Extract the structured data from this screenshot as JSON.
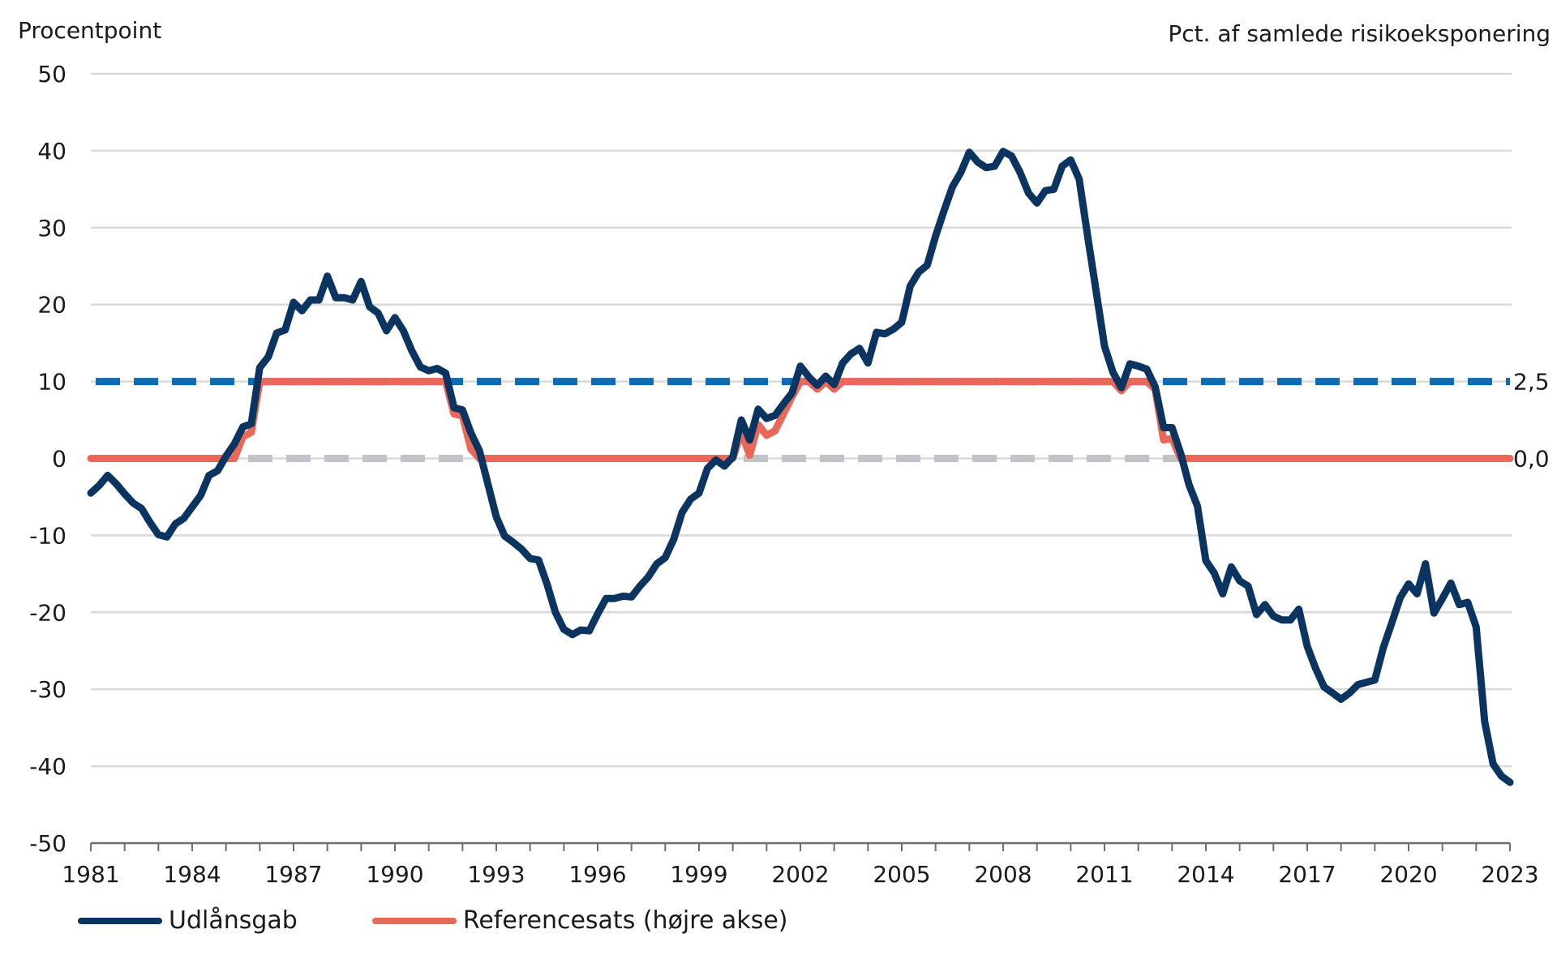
{
  "chart_data": {
    "type": "line",
    "left_axis_title": "Procentpoint",
    "right_axis_title": "Pct. af samlede risikoeksponering",
    "ylim": [
      -50,
      50
    ],
    "y_ticks": [
      50,
      40,
      30,
      20,
      10,
      0,
      -10,
      -20,
      -30,
      -40,
      -50
    ],
    "y_tick_labels": [
      "50",
      "40",
      "30",
      "20",
      "10",
      "0",
      "-10",
      "-20",
      "-30",
      "-40",
      "-50"
    ],
    "y2lim": [
      -12.5,
      12.5
    ],
    "y2_tick_labels": [
      {
        "value": 2.5,
        "label": "2,5"
      },
      {
        "value": 0.0,
        "label": "0,0"
      }
    ],
    "xlim": [
      1981,
      2023
    ],
    "x_tick_labels": [
      "1981",
      "1984",
      "1987",
      "1990",
      "1993",
      "1996",
      "1999",
      "2002",
      "2005",
      "2008",
      "2011",
      "2014",
      "2017",
      "2020",
      "2023"
    ],
    "grid": true,
    "legend_position": "bottom-left",
    "reference_lines": [
      {
        "y2": 2.5,
        "color": "#0e6ab3",
        "style": "dashed"
      },
      {
        "y2": 0.0,
        "color": "#c0c4c8",
        "style": "dashed"
      }
    ],
    "series": [
      {
        "name": "Udlånsgab",
        "axis": "left",
        "color": "#0b3560",
        "points": [
          [
            1981.0,
            -4.5
          ],
          [
            1981.25,
            -3.5
          ],
          [
            1981.5,
            -2.2
          ],
          [
            1981.75,
            -3.3
          ],
          [
            1982.0,
            -4.6
          ],
          [
            1982.25,
            -5.8
          ],
          [
            1982.5,
            -6.5
          ],
          [
            1982.75,
            -8.3
          ],
          [
            1983.0,
            -9.9
          ],
          [
            1983.25,
            -10.2
          ],
          [
            1983.5,
            -8.5
          ],
          [
            1983.75,
            -7.8
          ],
          [
            1984.0,
            -6.3
          ],
          [
            1984.25,
            -4.8
          ],
          [
            1984.5,
            -2.2
          ],
          [
            1984.75,
            -1.6
          ],
          [
            1985.0,
            0.3
          ],
          [
            1985.25,
            1.9
          ],
          [
            1985.5,
            4.1
          ],
          [
            1985.75,
            4.5
          ],
          [
            1986.0,
            11.8
          ],
          [
            1986.25,
            13.2
          ],
          [
            1986.5,
            16.3
          ],
          [
            1986.75,
            16.7
          ],
          [
            1987.0,
            20.3
          ],
          [
            1987.25,
            19.2
          ],
          [
            1987.5,
            20.6
          ],
          [
            1987.75,
            20.6
          ],
          [
            1988.0,
            23.7
          ],
          [
            1988.25,
            20.9
          ],
          [
            1988.5,
            20.9
          ],
          [
            1988.75,
            20.6
          ],
          [
            1989.0,
            23.0
          ],
          [
            1989.25,
            19.7
          ],
          [
            1989.5,
            18.9
          ],
          [
            1989.75,
            16.6
          ],
          [
            1990.0,
            18.3
          ],
          [
            1990.25,
            16.6
          ],
          [
            1990.5,
            14.0
          ],
          [
            1990.75,
            11.9
          ],
          [
            1991.0,
            11.4
          ],
          [
            1991.25,
            11.7
          ],
          [
            1991.5,
            11.1
          ],
          [
            1991.75,
            6.6
          ],
          [
            1992.0,
            6.3
          ],
          [
            1992.25,
            3.3
          ],
          [
            1992.5,
            1.0
          ],
          [
            1992.75,
            -3.3
          ],
          [
            1993.0,
            -7.6
          ],
          [
            1993.25,
            -10.1
          ],
          [
            1993.5,
            -10.9
          ],
          [
            1993.75,
            -11.8
          ],
          [
            1994.0,
            -13.0
          ],
          [
            1994.25,
            -13.2
          ],
          [
            1994.5,
            -16.3
          ],
          [
            1994.75,
            -20.0
          ],
          [
            1995.0,
            -22.2
          ],
          [
            1995.25,
            -22.9
          ],
          [
            1995.5,
            -22.3
          ],
          [
            1995.75,
            -22.4
          ],
          [
            1996.0,
            -20.2
          ],
          [
            1996.25,
            -18.2
          ],
          [
            1996.5,
            -18.2
          ],
          [
            1996.75,
            -17.9
          ],
          [
            1997.0,
            -18.0
          ],
          [
            1997.25,
            -16.6
          ],
          [
            1997.5,
            -15.4
          ],
          [
            1997.75,
            -13.7
          ],
          [
            1998.0,
            -12.9
          ],
          [
            1998.25,
            -10.5
          ],
          [
            1998.5,
            -7.0
          ],
          [
            1998.75,
            -5.3
          ],
          [
            1999.0,
            -4.5
          ],
          [
            1999.25,
            -1.3
          ],
          [
            1999.5,
            -0.2
          ],
          [
            1999.75,
            -1.0
          ],
          [
            2000.0,
            0.2
          ],
          [
            2000.25,
            5.0
          ],
          [
            2000.5,
            2.4
          ],
          [
            2000.75,
            6.4
          ],
          [
            2001.0,
            5.2
          ],
          [
            2001.25,
            5.6
          ],
          [
            2001.5,
            7.1
          ],
          [
            2001.75,
            8.5
          ],
          [
            2002.0,
            12.0
          ],
          [
            2002.25,
            10.6
          ],
          [
            2002.5,
            9.5
          ],
          [
            2002.75,
            10.7
          ],
          [
            2003.0,
            9.6
          ],
          [
            2003.25,
            12.4
          ],
          [
            2003.5,
            13.6
          ],
          [
            2003.75,
            14.3
          ],
          [
            2004.0,
            12.4
          ],
          [
            2004.25,
            16.4
          ],
          [
            2004.5,
            16.2
          ],
          [
            2004.75,
            16.8
          ],
          [
            2005.0,
            17.7
          ],
          [
            2005.25,
            22.4
          ],
          [
            2005.5,
            24.2
          ],
          [
            2005.75,
            25.1
          ],
          [
            2006.0,
            28.9
          ],
          [
            2006.25,
            32.2
          ],
          [
            2006.5,
            35.3
          ],
          [
            2006.75,
            37.2
          ],
          [
            2007.0,
            39.8
          ],
          [
            2007.25,
            38.5
          ],
          [
            2007.5,
            37.8
          ],
          [
            2007.75,
            38.0
          ],
          [
            2008.0,
            39.9
          ],
          [
            2008.25,
            39.3
          ],
          [
            2008.5,
            37.2
          ],
          [
            2008.75,
            34.5
          ],
          [
            2009.0,
            33.2
          ],
          [
            2009.25,
            34.8
          ],
          [
            2009.5,
            35.0
          ],
          [
            2009.75,
            38.0
          ],
          [
            2010.0,
            38.8
          ],
          [
            2010.25,
            36.3
          ],
          [
            2010.5,
            28.9
          ],
          [
            2010.75,
            21.8
          ],
          [
            2011.0,
            14.6
          ],
          [
            2011.25,
            11.2
          ],
          [
            2011.5,
            9.2
          ],
          [
            2011.75,
            12.3
          ],
          [
            2012.0,
            12.0
          ],
          [
            2012.25,
            11.6
          ],
          [
            2012.5,
            9.3
          ],
          [
            2012.75,
            4.0
          ],
          [
            2013.0,
            4.0
          ],
          [
            2013.25,
            0.7
          ],
          [
            2013.5,
            -3.4
          ],
          [
            2013.75,
            -6.2
          ],
          [
            2014.0,
            -13.3
          ],
          [
            2014.25,
            -14.9
          ],
          [
            2014.5,
            -17.6
          ],
          [
            2014.75,
            -14.1
          ],
          [
            2015.0,
            -15.9
          ],
          [
            2015.25,
            -16.6
          ],
          [
            2015.5,
            -20.3
          ],
          [
            2015.75,
            -19.0
          ],
          [
            2016.0,
            -20.5
          ],
          [
            2016.25,
            -21.0
          ],
          [
            2016.5,
            -21.0
          ],
          [
            2016.75,
            -19.6
          ],
          [
            2017.0,
            -24.4
          ],
          [
            2017.25,
            -27.3
          ],
          [
            2017.5,
            -29.7
          ],
          [
            2017.75,
            -30.5
          ],
          [
            2018.0,
            -31.3
          ],
          [
            2018.25,
            -30.5
          ],
          [
            2018.5,
            -29.4
          ],
          [
            2018.75,
            -29.1
          ],
          [
            2019.0,
            -28.8
          ],
          [
            2019.25,
            -24.6
          ],
          [
            2019.5,
            -21.4
          ],
          [
            2019.75,
            -18.1
          ],
          [
            2020.0,
            -16.3
          ],
          [
            2020.25,
            -17.6
          ],
          [
            2020.5,
            -13.7
          ],
          [
            2020.75,
            -20.1
          ],
          [
            2021.0,
            -18.2
          ],
          [
            2021.25,
            -16.2
          ],
          [
            2021.5,
            -19.0
          ],
          [
            2021.75,
            -18.7
          ],
          [
            2022.0,
            -21.9
          ],
          [
            2022.25,
            -34.2
          ],
          [
            2022.5,
            -39.7
          ],
          [
            2022.75,
            -41.3
          ],
          [
            2023.0,
            -42.1
          ]
        ]
      },
      {
        "name": "Referencesats (højre akse)",
        "axis": "right",
        "color": "#e8695a",
        "points": [
          [
            1981.0,
            0.0
          ],
          [
            1984.0,
            0.0
          ],
          [
            1985.0,
            0.0
          ],
          [
            1985.25,
            0.0
          ],
          [
            1985.5,
            0.7
          ],
          [
            1985.75,
            0.85
          ],
          [
            1986.0,
            2.5
          ],
          [
            1991.5,
            2.5
          ],
          [
            1991.75,
            1.45
          ],
          [
            1992.0,
            1.38
          ],
          [
            1992.25,
            0.3
          ],
          [
            1992.5,
            0.0
          ],
          [
            2000.0,
            0.0
          ],
          [
            2000.25,
            0.85
          ],
          [
            2000.5,
            0.1
          ],
          [
            2000.75,
            1.1
          ],
          [
            2001.0,
            0.75
          ],
          [
            2001.25,
            0.9
          ],
          [
            2001.5,
            1.45
          ],
          [
            2001.75,
            2.0
          ],
          [
            2002.0,
            2.5
          ],
          [
            2002.25,
            2.5
          ],
          [
            2002.5,
            2.25
          ],
          [
            2002.75,
            2.5
          ],
          [
            2003.0,
            2.25
          ],
          [
            2003.25,
            2.5
          ],
          [
            2011.25,
            2.5
          ],
          [
            2011.5,
            2.2
          ],
          [
            2011.75,
            2.5
          ],
          [
            2012.25,
            2.5
          ],
          [
            2012.5,
            2.25
          ],
          [
            2012.75,
            0.6
          ],
          [
            2013.0,
            0.65
          ],
          [
            2013.25,
            0.0
          ],
          [
            2023.0,
            0.0
          ]
        ]
      }
    ]
  },
  "legend": [
    {
      "label": "Udlånsgab",
      "color": "#0b3560"
    },
    {
      "label": "Referencesats (højre akse)",
      "color": "#e8695a"
    }
  ]
}
